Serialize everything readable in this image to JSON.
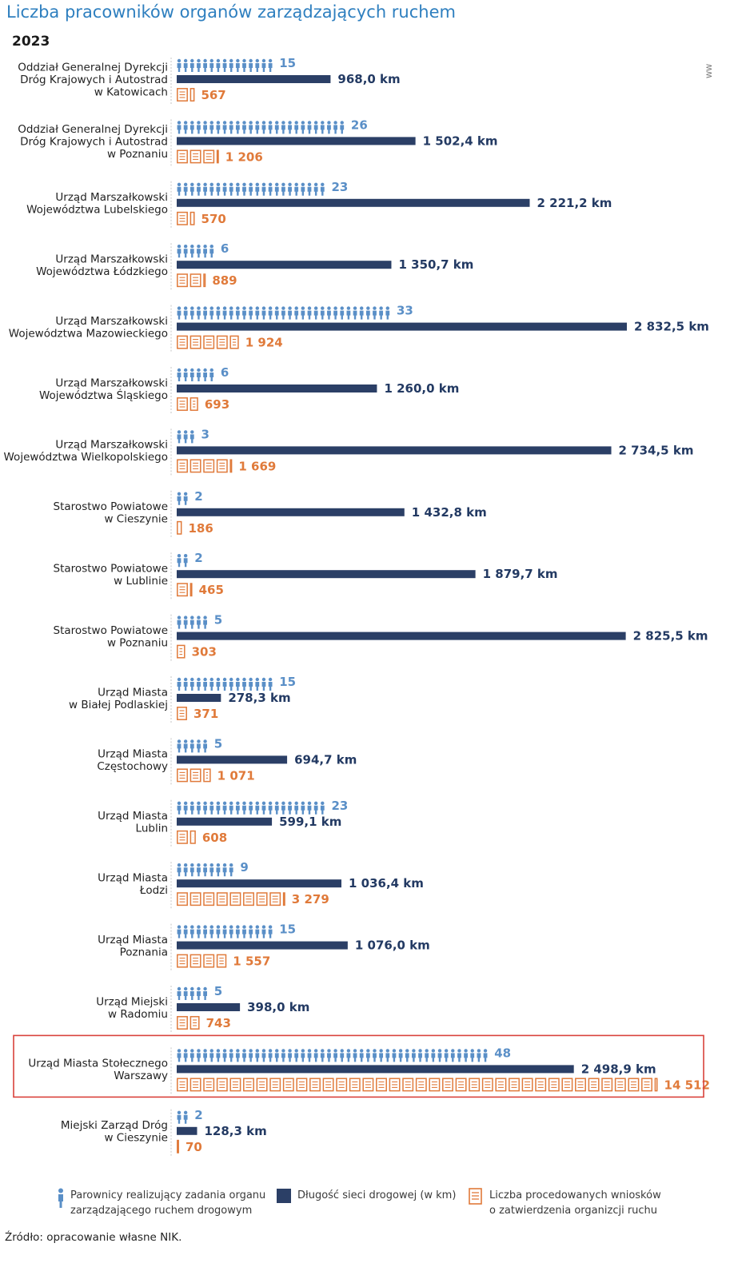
{
  "title": "Liczba pracowników organów zarządzających ruchem",
  "year": "2023",
  "side_tag": "WW",
  "source": "Źródło: opracowanie własne NIK.",
  "colors": {
    "employees": "#5a8fc7",
    "road": "#2b3f66",
    "requests": "#e07a3a",
    "highlight": "#d9423b"
  },
  "chart_data": {
    "type": "bar",
    "units": {
      "road": "km"
    },
    "rows": [
      {
        "label": [
          "Oddział Generalnej Dyrekcji",
          "Dróg Krajowych i Autostrad",
          "w Katowicach"
        ],
        "employees": 15,
        "employees_label": "15",
        "road_km": 968.0,
        "road_label": "968,0 km",
        "requests": 567,
        "requests_label": "567"
      },
      {
        "label": [
          "Oddział Generalnej Dyrekcji",
          "Dróg Krajowych i Autostrad",
          "w Poznaniu"
        ],
        "employees": 26,
        "employees_label": "26",
        "road_km": 1502.4,
        "road_label": "1 502,4 km",
        "requests": 1206,
        "requests_label": "1 206"
      },
      {
        "label": [
          "Urząd Marszałkowski",
          "Województwa Lubelskiego"
        ],
        "employees": 23,
        "employees_label": "23",
        "road_km": 2221.2,
        "road_label": "2 221,2 km",
        "requests": 570,
        "requests_label": "570"
      },
      {
        "label": [
          "Urząd Marszałkowski",
          "Województwa Łódzkiego"
        ],
        "employees": 6,
        "employees_label": "6",
        "road_km": 1350.7,
        "road_label": "1 350,7 km",
        "requests": 889,
        "requests_label": "889"
      },
      {
        "label": [
          "Urząd Marszałkowski",
          "Województwa Mazowieckiego"
        ],
        "employees": 33,
        "employees_label": "33",
        "road_km": 2832.5,
        "road_label": "2 832,5 km",
        "requests": 1924,
        "requests_label": "1 924"
      },
      {
        "label": [
          "Urząd Marszałkowski",
          "Województwa Śląskiego"
        ],
        "employees": 6,
        "employees_label": "6",
        "road_km": 1260.0,
        "road_label": "1 260,0 km",
        "requests": 693,
        "requests_label": "693"
      },
      {
        "label": [
          "Urząd Marszałkowski",
          "Województwa Wielkopolskiego"
        ],
        "employees": 3,
        "employees_label": "3",
        "road_km": 2734.5,
        "road_label": "2 734,5 km",
        "requests": 1669,
        "requests_label": "1 669"
      },
      {
        "label": [
          "Starostwo Powiatowe",
          "w Cieszynie"
        ],
        "employees": 2,
        "employees_label": "2",
        "road_km": 1432.8,
        "road_label": "1 432,8 km",
        "requests": 186,
        "requests_label": "186"
      },
      {
        "label": [
          "Starostwo Powiatowe",
          "w Lublinie"
        ],
        "employees": 2,
        "employees_label": "2",
        "road_km": 1879.7,
        "road_label": "1 879,7 km",
        "requests": 465,
        "requests_label": "465"
      },
      {
        "label": [
          "Starostwo Powiatowe",
          "w Poznaniu"
        ],
        "employees": 5,
        "employees_label": "5",
        "road_km": 2825.5,
        "road_label": "2 825,5 km",
        "requests": 303,
        "requests_label": "303"
      },
      {
        "label": [
          "Urząd Miasta",
          "w Białej Podlaskiej"
        ],
        "employees": 15,
        "employees_label": "15",
        "road_km": 278.3,
        "road_label": "278,3 km",
        "requests": 371,
        "requests_label": "371"
      },
      {
        "label": [
          "Urząd Miasta",
          "Częstochowy"
        ],
        "employees": 5,
        "employees_label": "5",
        "road_km": 694.7,
        "road_label": "694,7 km",
        "requests": 1071,
        "requests_label": "1 071"
      },
      {
        "label": [
          "Urząd Miasta",
          "Lublin"
        ],
        "employees": 23,
        "employees_label": "23",
        "road_km": 599.1,
        "road_label": "599,1 km",
        "requests": 608,
        "requests_label": "608"
      },
      {
        "label": [
          "Urząd Miasta",
          "Łodzi"
        ],
        "employees": 9,
        "employees_label": "9",
        "road_km": 1036.4,
        "road_label": "1 036,4 km",
        "requests": 3279,
        "requests_label": "3 279"
      },
      {
        "label": [
          "Urząd Miasta",
          "Poznania"
        ],
        "employees": 15,
        "employees_label": "15",
        "road_km": 1076.0,
        "road_label": "1 076,0 km",
        "requests": 1557,
        "requests_label": "1 557"
      },
      {
        "label": [
          "Urząd Miejski",
          "w Radomiu"
        ],
        "employees": 5,
        "employees_label": "5",
        "road_km": 398.0,
        "road_label": "398,0 km",
        "requests": 743,
        "requests_label": "743"
      },
      {
        "label": [
          "Urząd Miasta Stołecznego",
          "Warszawy"
        ],
        "employees": 48,
        "employees_label": "48",
        "road_km": 2498.9,
        "road_label": "2 498,9 km",
        "requests": 14512,
        "requests_label": "14 512",
        "highlighted": true
      },
      {
        "label": [
          "Miejski Zarząd Dróg",
          "w Cieszynie"
        ],
        "employees": 2,
        "employees_label": "2",
        "road_km": 128.3,
        "road_label": "128,3 km",
        "requests": 70,
        "requests_label": "70"
      }
    ],
    "legend": [
      {
        "icon": "person-icon",
        "text": [
          "Parownicy realizujący zadania organu",
          "zarządzającego ruchem drogowym"
        ]
      },
      {
        "icon": "bar-swatch",
        "text": [
          "Długość sieci drogowej (w km)"
        ]
      },
      {
        "icon": "document-icon",
        "text": [
          "Liczba procedowanych wniosków",
          "o zatwierdzenia organizcji ruchu"
        ]
      }
    ]
  }
}
